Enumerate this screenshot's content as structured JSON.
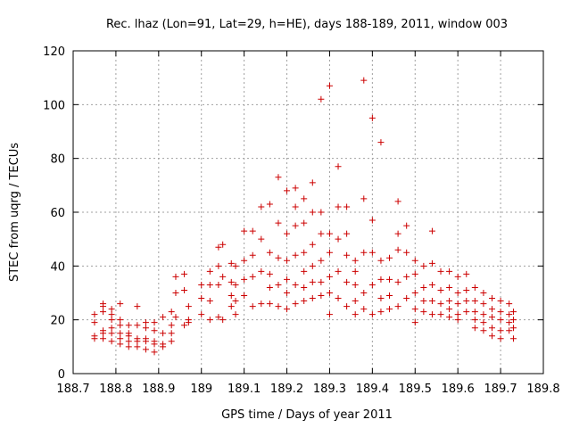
{
  "chart_data": {
    "type": "scatter",
    "title": "Rec. lhaz (Lon=91, Lat=29, h=HE), days 188-189, 2011, window 003",
    "xlabel": "GPS time / Days of year 2011",
    "ylabel": "STEC from uqrg / TECUs",
    "xlim": [
      188.7,
      189.8
    ],
    "ylim": [
      0,
      120
    ],
    "xticks": [
      188.7,
      188.8,
      188.9,
      189.0,
      189.1,
      189.2,
      189.3,
      189.4,
      189.5,
      189.6,
      189.7,
      189.8
    ],
    "xtick_labels": [
      "188.7",
      "188.8",
      "188.9",
      "189",
      "189.1",
      "189.2",
      "189.3",
      "189.4",
      "189.5",
      "189.6",
      "189.7",
      "189.8"
    ],
    "yticks": [
      0,
      20,
      40,
      60,
      80,
      100,
      120
    ],
    "ytick_labels": [
      "0",
      "20",
      "40",
      "60",
      "80",
      "100",
      "120"
    ],
    "grid": true,
    "marker": "+",
    "color": "#cc0000",
    "series": [
      {
        "x": [
          188.75,
          188.75,
          188.75,
          188.75,
          188.77,
          188.77,
          188.77,
          188.77,
          188.77,
          188.77,
          188.79,
          188.79,
          188.79,
          188.79,
          188.79,
          188.79,
          188.81,
          188.81,
          188.81,
          188.81,
          188.81,
          188.81,
          188.83,
          188.83,
          188.83,
          188.83,
          188.83,
          188.85,
          188.85,
          188.85,
          188.85,
          188.85,
          188.87,
          188.87,
          188.87,
          188.87,
          188.87,
          188.89,
          188.89,
          188.89,
          188.89,
          188.89,
          188.91,
          188.91,
          188.91,
          188.91,
          188.93,
          188.93,
          188.93,
          188.93,
          188.94,
          188.94,
          188.94,
          188.96,
          188.96,
          188.96,
          188.97,
          188.97,
          188.97,
          189.0,
          189.0,
          189.0,
          189.02,
          189.02,
          189.02,
          189.02,
          189.04,
          189.04,
          189.04,
          189.04,
          189.05,
          189.05,
          189.05,
          189.07,
          189.07,
          189.07,
          189.07,
          189.08,
          189.08,
          189.08,
          189.08,
          189.1,
          189.1,
          189.1,
          189.1,
          189.12,
          189.12,
          189.12,
          189.12,
          189.14,
          189.14,
          189.14,
          189.14,
          189.16,
          189.16,
          189.16,
          189.16,
          189.16,
          189.18,
          189.18,
          189.18,
          189.18,
          189.18,
          189.2,
          189.2,
          189.2,
          189.2,
          189.2,
          189.2,
          189.22,
          189.22,
          189.22,
          189.22,
          189.22,
          189.22,
          189.24,
          189.24,
          189.24,
          189.24,
          189.24,
          189.24,
          189.26,
          189.26,
          189.26,
          189.26,
          189.26,
          189.26,
          189.28,
          189.28,
          189.28,
          189.28,
          189.28,
          189.28,
          189.3,
          189.3,
          189.3,
          189.3,
          189.3,
          189.3,
          189.32,
          189.32,
          189.32,
          189.32,
          189.32,
          189.34,
          189.34,
          189.34,
          189.34,
          189.34,
          189.36,
          189.36,
          189.36,
          189.36,
          189.36,
          189.38,
          189.38,
          189.38,
          189.38,
          189.38,
          189.4,
          189.4,
          189.4,
          189.4,
          189.4,
          189.42,
          189.42,
          189.42,
          189.42,
          189.42,
          189.44,
          189.44,
          189.44,
          189.44,
          189.46,
          189.46,
          189.46,
          189.46,
          189.46,
          189.48,
          189.48,
          189.48,
          189.48,
          189.5,
          189.5,
          189.5,
          189.5,
          189.5,
          189.52,
          189.52,
          189.52,
          189.52,
          189.54,
          189.54,
          189.54,
          189.54,
          189.54,
          189.56,
          189.56,
          189.56,
          189.56,
          189.58,
          189.58,
          189.58,
          189.58,
          189.58,
          189.6,
          189.6,
          189.6,
          189.6,
          189.6,
          189.62,
          189.62,
          189.62,
          189.62,
          189.64,
          189.64,
          189.64,
          189.64,
          189.64,
          189.66,
          189.66,
          189.66,
          189.66,
          189.66,
          189.68,
          189.68,
          189.68,
          189.68,
          189.68,
          189.7,
          189.7,
          189.7,
          189.7,
          189.7,
          189.72,
          189.72,
          189.72,
          189.72,
          189.73,
          189.73,
          189.73,
          189.73
        ],
        "y": [
          22,
          19,
          14,
          13,
          26,
          25,
          23,
          16,
          15,
          13,
          24,
          22,
          20,
          17,
          15,
          12,
          26,
          20,
          18,
          15,
          13,
          11,
          18,
          15,
          14,
          12,
          10,
          25,
          18,
          13,
          12,
          10,
          19,
          17,
          13,
          12,
          9,
          19,
          16,
          12,
          11,
          8,
          21,
          15,
          11,
          10,
          23,
          18,
          15,
          12,
          36,
          30,
          21,
          18,
          37,
          31,
          25,
          20,
          19,
          33,
          28,
          22,
          38,
          33,
          27,
          20,
          47,
          40,
          33,
          21,
          48,
          36,
          20,
          41,
          34,
          29,
          25,
          40,
          33,
          27,
          22,
          53,
          42,
          35,
          29,
          53,
          44,
          36,
          25,
          62,
          50,
          38,
          26,
          63,
          45,
          37,
          32,
          26,
          73,
          56,
          43,
          33,
          25,
          68,
          52,
          42,
          35,
          30,
          24,
          69,
          62,
          55,
          44,
          33,
          26,
          65,
          56,
          45,
          38,
          32,
          27,
          71,
          60,
          48,
          40,
          34,
          28,
          102,
          60,
          52,
          42,
          34,
          29,
          107,
          52,
          45,
          36,
          30,
          22,
          77,
          62,
          50,
          38,
          28,
          62,
          52,
          44,
          34,
          25,
          42,
          38,
          33,
          27,
          22,
          109,
          65,
          45,
          30,
          24,
          95,
          57,
          45,
          33,
          22,
          86,
          42,
          35,
          28,
          23,
          43,
          35,
          29,
          24,
          64,
          52,
          46,
          34,
          25,
          55,
          45,
          36,
          28,
          42,
          37,
          30,
          24,
          19,
          40,
          32,
          27,
          23,
          53,
          41,
          33,
          27,
          22,
          38,
          31,
          26,
          22,
          38,
          32,
          27,
          24,
          21,
          36,
          30,
          26,
          22,
          20,
          37,
          31,
          27,
          23,
          32,
          27,
          23,
          20,
          17,
          30,
          26,
          22,
          19,
          16,
          28,
          24,
          21,
          17,
          14,
          27,
          23,
          20,
          16,
          13,
          26,
          22,
          19,
          16,
          23,
          20,
          17,
          13
        ]
      }
    ]
  }
}
